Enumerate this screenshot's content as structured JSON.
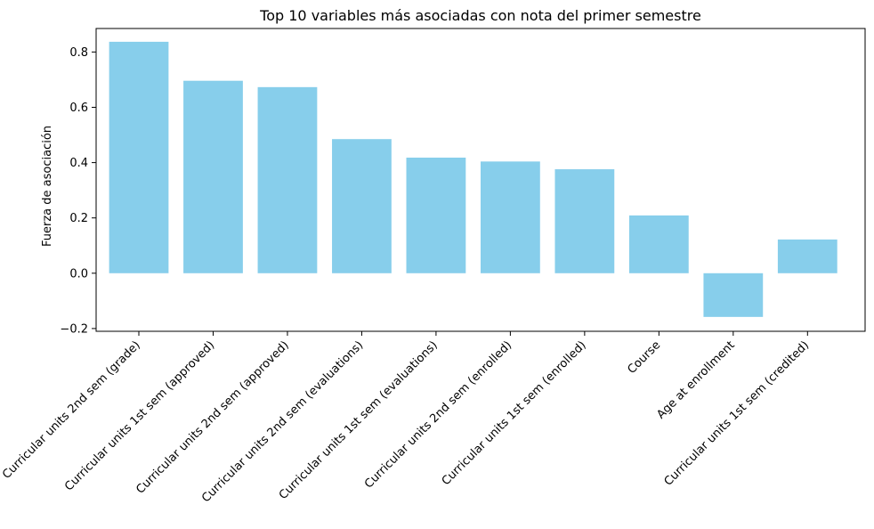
{
  "chart_data": {
    "type": "bar",
    "title": "Top 10 variables más asociadas con nota del primer semestre",
    "xlabel": "",
    "ylabel": "Fuerza de asociación",
    "categories": [
      "Curricular units 2nd sem (grade)",
      "Curricular units 1st sem (approved)",
      "Curricular units 2nd sem (approved)",
      "Curricular units 2nd sem (evaluations)",
      "Curricular units 1st sem (evaluations)",
      "Curricular units 2nd sem (enrolled)",
      "Curricular units 1st sem (enrolled)",
      "Course",
      "Age at enrollment",
      "Curricular units 1st sem (credited)"
    ],
    "values": [
      0.837,
      0.696,
      0.673,
      0.485,
      0.418,
      0.404,
      0.376,
      0.209,
      -0.158,
      0.122
    ],
    "ylim": [
      -0.21,
      0.885
    ],
    "yticks": [
      -0.2,
      0.0,
      0.2,
      0.4,
      0.6,
      0.8
    ],
    "ytick_labels": [
      "−0.2",
      "0.0",
      "0.2",
      "0.4",
      "0.6",
      "0.8"
    ],
    "bar_color": "#87CEEB",
    "grid": false,
    "legend": "none"
  }
}
